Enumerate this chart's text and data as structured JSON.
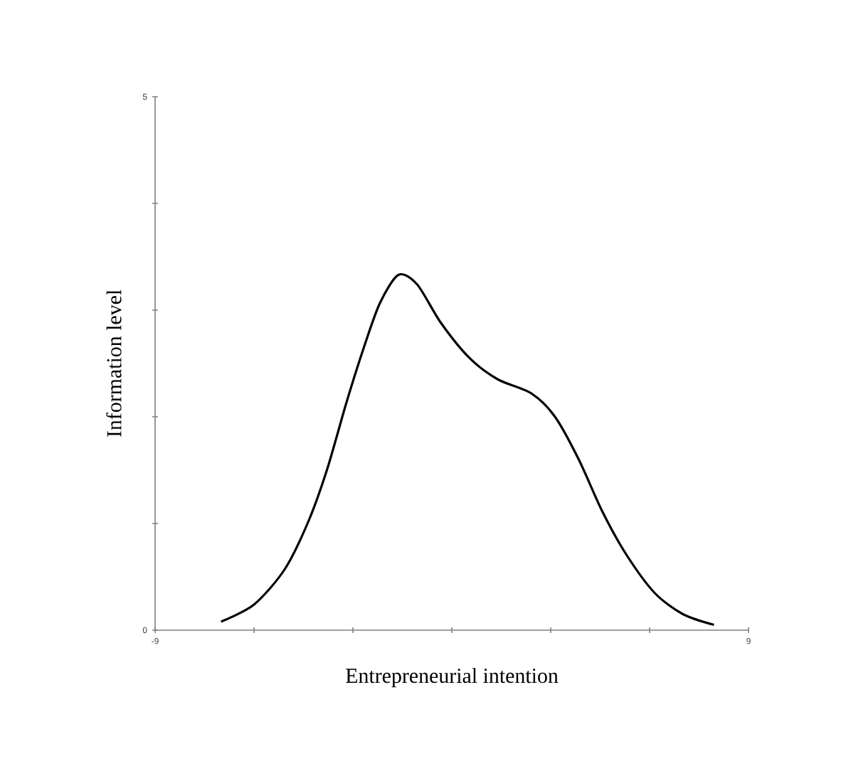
{
  "chart_data": {
    "type": "line",
    "xlabel": "Entrepreneurial intention",
    "ylabel": "Information level",
    "xlim": [
      -9,
      9
    ],
    "ylim": [
      0,
      5
    ],
    "xticks": [
      -9,
      {
        "value": -6,
        "label": null
      },
      {
        "value": -3,
        "label": null
      },
      {
        "value": 0,
        "label": null
      },
      {
        "value": 3,
        "label": null
      },
      {
        "value": 6,
        "label": null
      },
      9
    ],
    "yticks": [
      0,
      {
        "value": 1,
        "label": null
      },
      {
        "value": 2,
        "label": null
      },
      {
        "value": 3,
        "label": null
      },
      {
        "value": 4,
        "label": null
      },
      5
    ],
    "grid": false,
    "marker": "none",
    "line_style": "solid",
    "series": [
      {
        "color": "#000000",
        "x": [
          -7.0,
          -6.0,
          -5.07,
          -4.35,
          -3.78,
          -3.2,
          -2.7,
          -2.19,
          -1.62,
          -1.05,
          -0.33,
          0.54,
          1.4,
          2.41,
          3.13,
          3.85,
          4.57,
          5.29,
          6.15,
          7.01,
          7.95
        ],
        "values": [
          0.08,
          0.24,
          0.57,
          1.02,
          1.51,
          2.13,
          2.62,
          3.06,
          3.33,
          3.24,
          2.88,
          2.55,
          2.35,
          2.22,
          2.0,
          1.6,
          1.11,
          0.71,
          0.35,
          0.15,
          0.05
        ]
      }
    ]
  }
}
